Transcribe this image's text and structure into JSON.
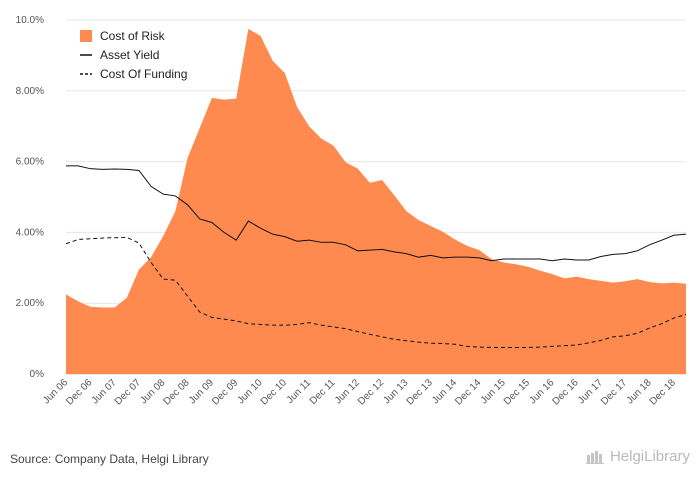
{
  "chart_data": {
    "type": "area",
    "categories": [
      "Jun 06",
      "Sep 06",
      "Dec 06",
      "Mar 07",
      "Jun 07",
      "Sep 07",
      "Dec 07",
      "Mar 08",
      "Jun 08",
      "Sep 08",
      "Dec 08",
      "Mar 09",
      "Jun 09",
      "Sep 09",
      "Dec 09",
      "Mar 10",
      "Jun 10",
      "Sep 10",
      "Dec 10",
      "Mar 11",
      "Jun 11",
      "Sep 11",
      "Dec 11",
      "Mar 12",
      "Jun 12",
      "Sep 12",
      "Dec 12",
      "Mar 13",
      "Jun 13",
      "Sep 13",
      "Dec 13",
      "Mar 14",
      "Jun 14",
      "Sep 14",
      "Dec 14",
      "Mar 15",
      "Jun 15",
      "Sep 15",
      "Dec 15",
      "Mar 16",
      "Jun 16",
      "Sep 16",
      "Dec 16",
      "Mar 17",
      "Jun 17",
      "Sep 17",
      "Dec 17",
      "Mar 18",
      "Jun 18",
      "Sep 18",
      "Dec 18",
      "Mar 19"
    ],
    "tick_labels": [
      "Jun 06",
      "Dec 06",
      "Jun 07",
      "Dec 07",
      "Jun 08",
      "Dec 08",
      "Jun 09",
      "Dec 09",
      "Jun 10",
      "Dec 10",
      "Jun 11",
      "Dec 11",
      "Jun 12",
      "Dec 12",
      "Jun 13",
      "Dec 13",
      "Jun 14",
      "Dec 14",
      "Jun 15",
      "Dec 15",
      "Jun 16",
      "Dec 16",
      "Jun 17",
      "Dec 17",
      "Jun 18",
      "Dec 18"
    ],
    "y_ticks": [
      "0%",
      "2.00%",
      "4.00%",
      "6.00%",
      "8.00%",
      "10.0%"
    ],
    "ylim": [
      0,
      10
    ],
    "series": [
      {
        "name": "Cost of Risk",
        "kind": "area",
        "color": "#ff8a4f",
        "values": [
          2.25,
          2.05,
          1.9,
          1.88,
          1.88,
          2.15,
          2.95,
          3.3,
          3.9,
          4.6,
          6.1,
          6.95,
          7.8,
          7.75,
          7.78,
          9.75,
          9.55,
          8.85,
          8.5,
          7.55,
          7.0,
          6.65,
          6.45,
          5.98,
          5.8,
          5.4,
          5.48,
          5.05,
          4.6,
          4.35,
          4.18,
          4.02,
          3.8,
          3.62,
          3.5,
          3.25,
          3.15,
          3.1,
          3.03,
          2.92,
          2.82,
          2.7,
          2.75,
          2.68,
          2.63,
          2.58,
          2.62,
          2.68,
          2.6,
          2.56,
          2.58,
          2.55
        ]
      },
      {
        "name": "Asset Yield",
        "kind": "line",
        "color": "#111111",
        "dash": "solid",
        "values": [
          5.88,
          5.88,
          5.8,
          5.78,
          5.79,
          5.78,
          5.75,
          5.3,
          5.08,
          5.03,
          4.78,
          4.38,
          4.28,
          4.0,
          3.78,
          4.32,
          4.12,
          3.95,
          3.88,
          3.75,
          3.78,
          3.72,
          3.72,
          3.65,
          3.48,
          3.5,
          3.52,
          3.45,
          3.4,
          3.3,
          3.35,
          3.28,
          3.3,
          3.3,
          3.28,
          3.2,
          3.25,
          3.25,
          3.25,
          3.25,
          3.2,
          3.25,
          3.22,
          3.22,
          3.32,
          3.38,
          3.4,
          3.48,
          3.65,
          3.78,
          3.92,
          3.95
        ]
      },
      {
        "name": "Cost Of Funding",
        "kind": "line",
        "color": "#111111",
        "dash": "dashed",
        "values": [
          3.68,
          3.8,
          3.82,
          3.84,
          3.85,
          3.86,
          3.7,
          3.15,
          2.68,
          2.65,
          2.2,
          1.75,
          1.6,
          1.55,
          1.5,
          1.42,
          1.4,
          1.38,
          1.38,
          1.4,
          1.45,
          1.38,
          1.33,
          1.28,
          1.2,
          1.12,
          1.05,
          0.98,
          0.94,
          0.9,
          0.87,
          0.86,
          0.84,
          0.78,
          0.76,
          0.75,
          0.75,
          0.75,
          0.75,
          0.76,
          0.78,
          0.8,
          0.82,
          0.88,
          0.95,
          1.05,
          1.08,
          1.15,
          1.3,
          1.42,
          1.58,
          1.68
        ]
      }
    ],
    "grid": true,
    "legend_position": "top-left"
  },
  "footer": {
    "source": "Source: Company Data, Helgi Library",
    "brand": "HelgiLibrary"
  }
}
